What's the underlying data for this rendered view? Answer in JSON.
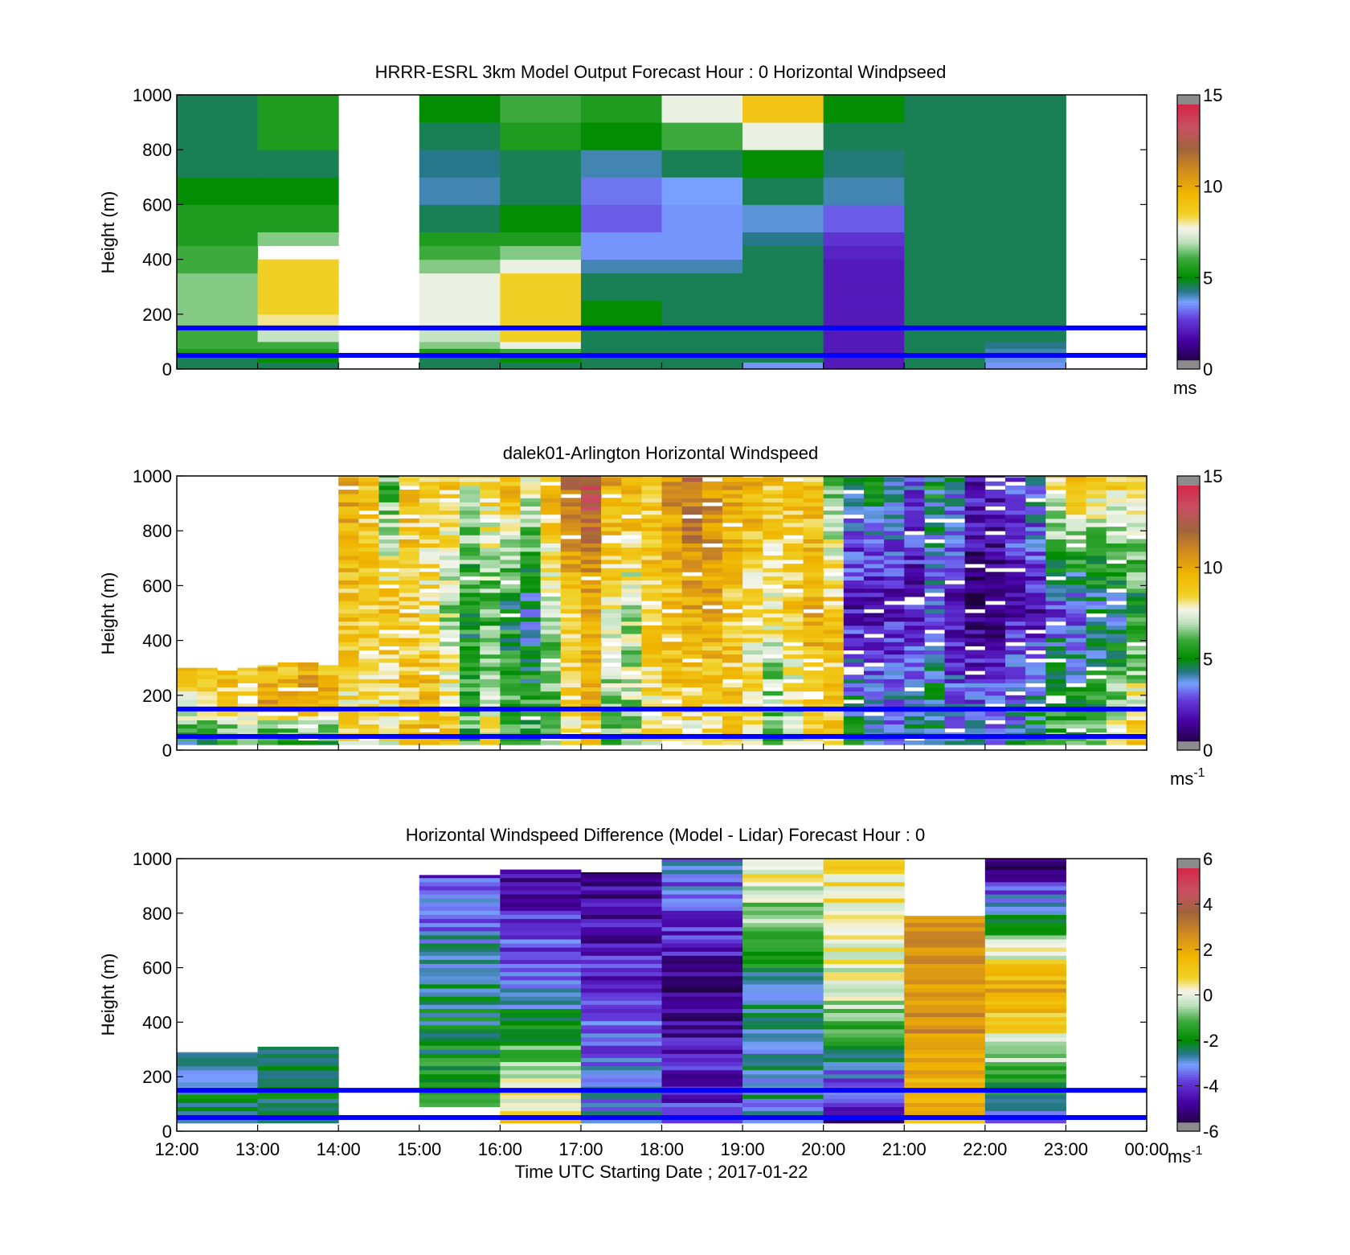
{
  "chart_data": [
    {
      "type": "heatmap",
      "title": "HRRR-ESRL 3km Model Output   Forecast Hour : 0 Horizontal Windpseed",
      "xlabel": "",
      "ylabel": "Height (m)",
      "xlim": [
        12,
        24
      ],
      "ylim": [
        0,
        1000
      ],
      "y_ticks": [
        "0",
        "200",
        "400",
        "600",
        "800",
        "1000"
      ],
      "x_ticks": [],
      "colorbar": {
        "min": 0,
        "max": 15,
        "ticks": [
          "0",
          "5",
          "10",
          "15"
        ],
        "unit": "ms"
      },
      "reference_lines_m": [
        150,
        50
      ],
      "time_columns": [
        12,
        13,
        14,
        15,
        16,
        17,
        18,
        19,
        20,
        21,
        22,
        23
      ],
      "height_levels": [
        0,
        25,
        50,
        75,
        100,
        150,
        200,
        250,
        300,
        350,
        400,
        450,
        500,
        600,
        700,
        800,
        900,
        1000
      ],
      "values": [
        [
          4.5,
          4.5,
          5.5,
          6.0,
          6.0,
          6.5,
          6.5,
          6.5,
          6.5,
          6.0,
          6.0,
          5.5,
          5.5,
          5.0,
          4.5,
          4.5,
          4.5
        ],
        [
          4.5,
          5.0,
          5.5,
          6.0,
          7.0,
          8.0,
          8.5,
          8.5,
          8.5,
          8.5,
          null,
          6.5,
          5.5,
          5.0,
          4.5,
          5.5,
          5.5
        ],
        [
          null,
          null,
          null,
          null,
          null,
          null,
          null,
          null,
          null,
          null,
          null,
          null,
          null,
          null,
          null,
          null,
          null
        ],
        [
          4.5,
          4.5,
          5.5,
          6.5,
          7.0,
          7.5,
          7.5,
          7.5,
          7.5,
          6.5,
          6.0,
          5.5,
          4.5,
          4.0,
          4.2,
          4.5,
          5.0
        ],
        [
          4.5,
          5.0,
          6.0,
          7.5,
          8.5,
          8.5,
          8.5,
          8.5,
          8.5,
          7.5,
          6.5,
          5.5,
          5.0,
          4.5,
          4.5,
          5.5,
          6.0
        ],
        [
          4.5,
          4.5,
          4.5,
          4.5,
          4.5,
          5.0,
          5.0,
          4.5,
          4.5,
          4.0,
          3.5,
          3.5,
          3.0,
          3.2,
          4.0,
          5.0,
          5.5
        ],
        [
          4.5,
          4.5,
          4.5,
          4.5,
          4.5,
          4.5,
          4.5,
          4.5,
          4.5,
          4.0,
          3.5,
          3.5,
          3.5,
          3.6,
          4.5,
          6.0,
          7.5
        ],
        [
          3.5,
          4.5,
          4.5,
          4.5,
          4.5,
          4.5,
          4.5,
          4.5,
          4.5,
          4.5,
          4.5,
          4.2,
          3.8,
          4.5,
          5.0,
          7.5,
          9.0
        ],
        [
          2.0,
          2.0,
          2.0,
          2.0,
          2.0,
          2.0,
          2.0,
          2.0,
          2.0,
          2.0,
          2.2,
          2.5,
          3.0,
          4.0,
          4.3,
          4.5,
          5.0
        ],
        [
          4.5,
          4.5,
          4.5,
          4.5,
          4.5,
          4.5,
          4.5,
          4.5,
          4.5,
          4.5,
          4.5,
          4.5,
          4.5,
          4.5,
          4.5,
          4.5,
          4.5
        ],
        [
          3.5,
          3.8,
          4.0,
          4.2,
          4.5,
          4.5,
          4.5,
          4.5,
          4.5,
          4.5,
          4.5,
          4.5,
          4.5,
          4.5,
          4.5,
          4.5,
          4.5
        ],
        [
          null,
          null,
          null,
          null,
          null,
          null,
          null,
          null,
          null,
          null,
          null,
          null,
          null,
          null,
          null,
          null,
          null
        ]
      ]
    },
    {
      "type": "heatmap",
      "title": "dalek01-Arlington  Horizontal Windspeed",
      "xlabel": "",
      "ylabel": "Height (m)",
      "xlim": [
        12,
        24
      ],
      "ylim": [
        0,
        1000
      ],
      "y_ticks": [
        "0",
        "200",
        "400",
        "600",
        "800",
        "1000"
      ],
      "x_ticks": [],
      "colorbar": {
        "min": 0,
        "max": 15,
        "ticks": [
          "0",
          "5",
          "10",
          "15"
        ],
        "unit": "ms",
        "unit_exponent": "-1"
      },
      "reference_lines_m": [
        150,
        50
      ],
      "time_columns": [
        12.0,
        12.25,
        12.5,
        12.75,
        13.0,
        13.25,
        13.5,
        13.75,
        14.0,
        14.25,
        14.5,
        14.75,
        15.0,
        15.25,
        15.5,
        15.75,
        16.0,
        16.25,
        16.5,
        16.75,
        17.0,
        17.25,
        17.5,
        17.75,
        18.0,
        18.25,
        18.5,
        18.75,
        19.0,
        19.25,
        19.5,
        19.75,
        20.0,
        20.25,
        20.5,
        20.75,
        21.0,
        21.25,
        21.5,
        21.75,
        22.0,
        22.25,
        22.5,
        22.75,
        23.0,
        23.25,
        23.5,
        23.75
      ],
      "column_tops_m": [
        300,
        300,
        290,
        300,
        310,
        320,
        330,
        310,
        1000,
        1000,
        1000,
        1000,
        1000,
        1000,
        1000,
        1000,
        1000,
        1000,
        1000,
        1000,
        1000,
        1000,
        1000,
        1000,
        1000,
        1000,
        1000,
        1000,
        1000,
        1000,
        1000,
        1000,
        1000,
        1000,
        1000,
        1000,
        1000,
        1000,
        1000,
        1000,
        1000,
        1000,
        1000,
        1000,
        1000,
        1000,
        1000,
        1000
      ],
      "column_profiles": [
        [
          5,
          8,
          9
        ],
        [
          5,
          8,
          9
        ],
        [
          5,
          9,
          9
        ],
        [
          6,
          9,
          9
        ],
        [
          5,
          10,
          9
        ],
        [
          5,
          10,
          9
        ],
        [
          5,
          11,
          9
        ],
        [
          5,
          10,
          9
        ],
        [
          8,
          9,
          10
        ],
        [
          8,
          9,
          9
        ],
        [
          8,
          9,
          6
        ],
        [
          9,
          9,
          9
        ],
        [
          10,
          8,
          9
        ],
        [
          9,
          7,
          9
        ],
        [
          6,
          5,
          8
        ],
        [
          8,
          6,
          9
        ],
        [
          6,
          5,
          10
        ],
        [
          6,
          4,
          8
        ],
        [
          6,
          7,
          10
        ],
        [
          8,
          9,
          12
        ],
        [
          9,
          10,
          13
        ],
        [
          6,
          8,
          10
        ],
        [
          7,
          7,
          10
        ],
        [
          8,
          9,
          9
        ],
        [
          9,
          9,
          11
        ],
        [
          8,
          10,
          12
        ],
        [
          8,
          10,
          11
        ],
        [
          9,
          9,
          10
        ],
        [
          8,
          8,
          10
        ],
        [
          6,
          8,
          9
        ],
        [
          7,
          9,
          9
        ],
        [
          8,
          10,
          9
        ],
        [
          9,
          9,
          6
        ],
        [
          5,
          2,
          4
        ],
        [
          4,
          2,
          5
        ],
        [
          4,
          2,
          4
        ],
        [
          5,
          2,
          3
        ],
        [
          5,
          3,
          5
        ],
        [
          4,
          2,
          4
        ],
        [
          4,
          1,
          2
        ],
        [
          4,
          1,
          2
        ],
        [
          4,
          2,
          3
        ],
        [
          5,
          2,
          4
        ],
        [
          6,
          3,
          9
        ],
        [
          6,
          3,
          10
        ],
        [
          6,
          4,
          9
        ],
        [
          8,
          4,
          9
        ],
        [
          9,
          5,
          9
        ]
      ]
    },
    {
      "type": "heatmap",
      "title": "Horizontal Windspeed Difference (Model - Lidar) Forecast Hour : 0",
      "xlabel": "Time UTC  Starting Date ; 2017-01-22",
      "ylabel": "Height (m)",
      "xlim": [
        12,
        24
      ],
      "ylim": [
        0,
        1000
      ],
      "y_ticks": [
        "0",
        "200",
        "400",
        "600",
        "800",
        "1000"
      ],
      "x_ticks": [
        "12:00",
        "13:00",
        "14:00",
        "15:00",
        "16:00",
        "17:00",
        "18:00",
        "19:00",
        "20:00",
        "21:00",
        "22:00",
        "23:00",
        "00:00"
      ],
      "colorbar": {
        "min": -6,
        "max": 6,
        "ticks": [
          "-6",
          "-4",
          "-2",
          "0",
          "2",
          "4",
          "6"
        ],
        "unit": "ms",
        "unit_exponent": "-1"
      },
      "reference_lines_m": [
        150,
        50
      ],
      "time_columns": [
        12,
        13,
        14,
        15,
        16,
        17,
        18,
        19,
        20,
        21,
        22,
        23
      ],
      "column_ranges_m": [
        [
          30,
          290
        ],
        [
          30,
          310
        ],
        null,
        [
          90,
          940
        ],
        [
          30,
          960
        ],
        [
          30,
          950
        ],
        [
          30,
          1000
        ],
        [
          30,
          1000
        ],
        [
          30,
          1000
        ],
        [
          30,
          790
        ],
        [
          30,
          1000
        ],
        null
      ],
      "column_profiles": [
        [
          -2.0,
          -2.5,
          -3.0
        ],
        [
          -2.2,
          -2.4,
          -2.5
        ],
        [
          null,
          null,
          null
        ],
        [
          -1.5,
          -2.5,
          -4.0
        ],
        [
          1.0,
          -3.0,
          -5.0
        ],
        [
          -3.0,
          -4.0,
          -5.0
        ],
        [
          -4.0,
          -5.0,
          -3.0
        ],
        [
          -3.0,
          -2.5,
          0.5
        ],
        [
          -5.0,
          0.0,
          0.5
        ],
        [
          1.5,
          2.5,
          2.5
        ],
        [
          -3.0,
          2.0,
          -5.5
        ],
        [
          null,
          null,
          null
        ]
      ]
    }
  ]
}
